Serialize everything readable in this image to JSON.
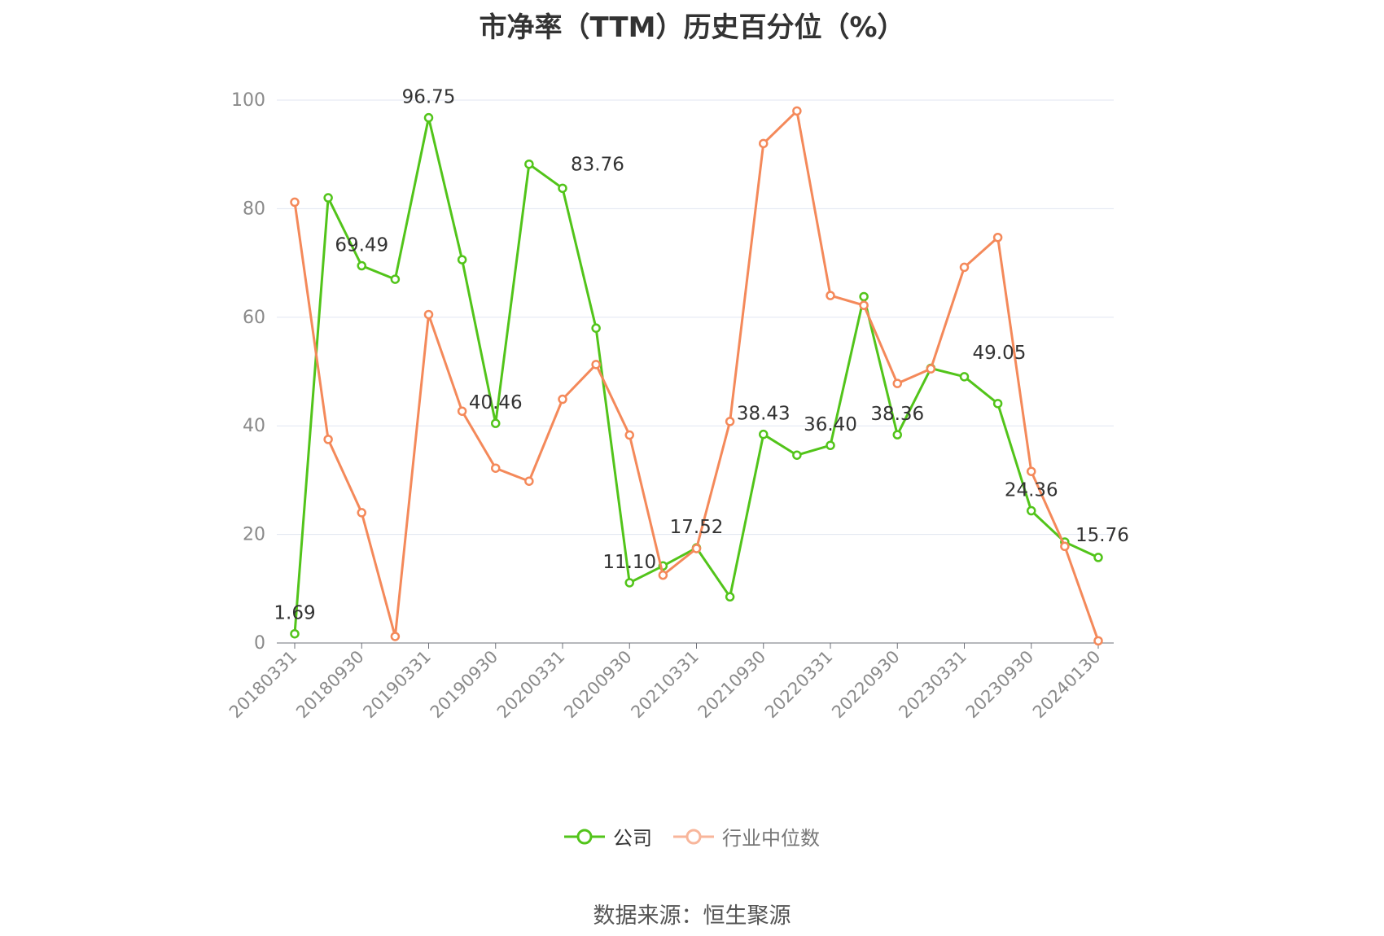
{
  "chart_data": {
    "type": "line",
    "title": "市净率（TTM）历史百分位（%）",
    "ylim": [
      0,
      100
    ],
    "yticks": [
      0,
      20,
      40,
      60,
      80,
      100
    ],
    "grid": true,
    "legend_position": "bottom-center",
    "x": [
      "20180331",
      "20180630",
      "20180930",
      "20181231",
      "20190331",
      "20190630",
      "20190930",
      "20191231",
      "20200331",
      "20200630",
      "20200930",
      "20201231",
      "20210331",
      "20210630",
      "20210930",
      "20211231",
      "20220331",
      "20220630",
      "20220930",
      "20221231",
      "20230331",
      "20230630",
      "20230930",
      "20231231",
      "20240130"
    ],
    "x_tick_labels": [
      "20180331",
      "20180930",
      "20190331",
      "20190930",
      "20200331",
      "20200930",
      "20210331",
      "20210930",
      "20220331",
      "20220930",
      "20230331",
      "20230930",
      "20240130"
    ],
    "series": [
      {
        "name": "公司",
        "color": "#52c41a",
        "values": [
          1.69,
          82.0,
          69.49,
          67.0,
          96.75,
          70.6,
          40.46,
          88.2,
          83.76,
          58.0,
          11.1,
          14.2,
          17.52,
          8.5,
          38.43,
          34.6,
          36.4,
          63.8,
          38.36,
          50.6,
          49.05,
          44.1,
          24.36,
          18.6,
          15.76
        ],
        "labels": [
          "1.69",
          "",
          "69.49",
          "",
          "96.75",
          "",
          "40.46",
          "",
          "83.76",
          "",
          "11.10",
          "",
          "17.52",
          "",
          "38.43",
          "",
          "36.40",
          "",
          "38.36",
          "",
          "49.05",
          "",
          "24.36",
          "",
          "15.76"
        ]
      },
      {
        "name": "行业中位数",
        "color": "#f4895a",
        "values": [
          81.2,
          37.5,
          24.0,
          1.2,
          60.5,
          42.7,
          32.2,
          29.8,
          44.9,
          51.3,
          38.3,
          12.5,
          17.4,
          40.8,
          92.0,
          98.0,
          64.0,
          62.2,
          47.8,
          50.5,
          69.2,
          74.7,
          31.6,
          17.8,
          0.4
        ]
      }
    ],
    "source": "数据来源：恒生聚源"
  }
}
